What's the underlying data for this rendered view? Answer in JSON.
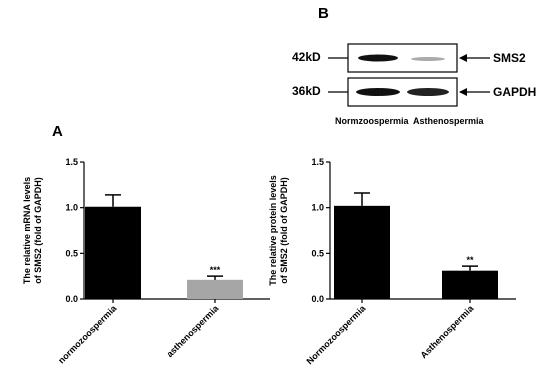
{
  "chart_data": [
    {
      "type": "bar",
      "panel": "A",
      "ylabel": [
        "The relative mRNA levels",
        "of SMS2 (fold of GAPDH)"
      ],
      "categories": [
        "normozoospermia",
        "asthenospermia"
      ],
      "values": [
        1.01,
        0.21
      ],
      "errors": [
        0.13,
        0.04
      ],
      "colors": [
        "#000000",
        "#a6a6a6"
      ],
      "annotation": "***",
      "ylim": [
        0,
        1.5
      ],
      "yticks": [
        {
          "value": 0,
          "label": "0.0"
        },
        0.5,
        {
          "value": 1,
          "label": "1.0"
        },
        1.5
      ]
    },
    {
      "type": "bar",
      "ylabel": [
        "The relative protein levels",
        "of SMS2 (fold of GAPDH)"
      ],
      "categories": [
        "Normozoospermia",
        "Asthenospermia"
      ],
      "values": [
        1.02,
        0.31
      ],
      "errors": [
        0.14,
        0.05
      ],
      "colors": [
        "#000000",
        "#000000"
      ],
      "annotation": "**",
      "ylim": [
        0,
        1.5
      ],
      "yticks": [
        {
          "value": 0,
          "label": "0.0"
        },
        0.5,
        {
          "value": 1,
          "label": "1.0"
        },
        1.5
      ]
    }
  ],
  "blot": {
    "panel": "B",
    "markers": [
      "42kD",
      "36kD"
    ],
    "proteins": [
      "SMS2",
      "GAPDH"
    ],
    "lanes": [
      "Normzoospermia",
      "Asthenospermia"
    ]
  }
}
